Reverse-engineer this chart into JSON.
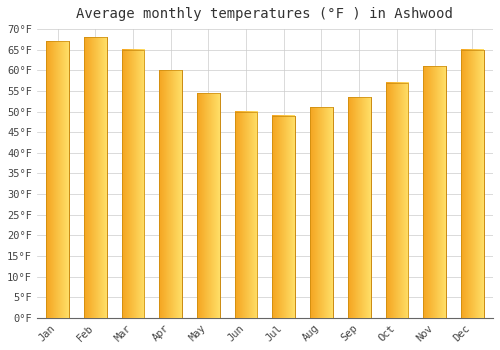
{
  "title": "Average monthly temperatures (°F ) in Ashwood",
  "months": [
    "Jan",
    "Feb",
    "Mar",
    "Apr",
    "May",
    "Jun",
    "Jul",
    "Aug",
    "Sep",
    "Oct",
    "Nov",
    "Dec"
  ],
  "values": [
    67,
    68,
    65,
    60,
    54.5,
    50,
    49,
    51,
    53.5,
    57,
    61,
    65
  ],
  "bar_color_left": "#F5A623",
  "bar_color_right": "#FFD966",
  "bar_edge_color": "#C8870A",
  "ylim": [
    0,
    70
  ],
  "ytick_step": 5,
  "background_color": "#FFFFFF",
  "grid_color": "#CCCCCC",
  "title_fontsize": 10,
  "tick_fontsize": 7.5,
  "font_family": "monospace",
  "bar_width": 0.6
}
